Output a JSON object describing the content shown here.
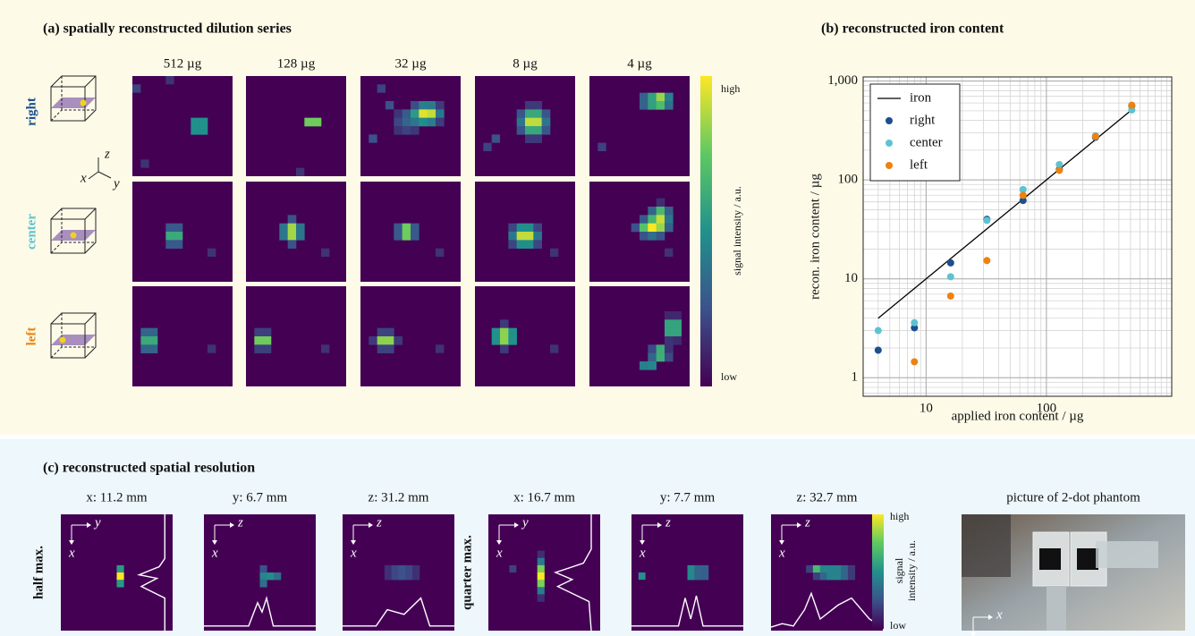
{
  "panel_a": {
    "title": "(a) spatially reconstructed dilution series",
    "columns": [
      "512 µg",
      "128 µg",
      "32 µg",
      "8 µg",
      "4 µg"
    ],
    "rows": [
      "right",
      "center",
      "left"
    ],
    "axes": {
      "x": "x",
      "y": "y",
      "z": "z"
    },
    "colorbar": {
      "high": "high",
      "low": "low",
      "label": "signal intensity / a.u."
    }
  },
  "chart_data": {
    "type": "scatter",
    "title": "(b) reconstructed iron content",
    "x_label": "applied iron content / µg",
    "y_label": "recon. iron content / µg",
    "x": [
      4,
      8,
      16,
      32,
      64,
      128,
      256,
      512
    ],
    "series": [
      {
        "name": "iron",
        "mode": "line",
        "color": "#000000",
        "values": [
          4,
          8,
          16,
          32,
          64,
          128,
          256,
          512
        ]
      },
      {
        "name": "right",
        "mode": "markers",
        "color": "#1b4f8e",
        "values": [
          1.9,
          3.2,
          14.5,
          40,
          62,
          128,
          270,
          560
        ]
      },
      {
        "name": "center",
        "mode": "markers",
        "color": "#5dc3d0",
        "values": [
          3.0,
          3.6,
          10.5,
          39,
          80,
          143,
          280,
          510
        ]
      },
      {
        "name": "left",
        "mode": "markers",
        "color": "#ec8210",
        "values": [
          null,
          1.45,
          6.7,
          15.3,
          70,
          125,
          275,
          570
        ]
      }
    ],
    "xlog": true,
    "ylog": true,
    "xlim": [
      3,
      1100
    ],
    "ylim": [
      0.65,
      1100
    ],
    "xticks": [
      10,
      100
    ],
    "yticks": [
      1,
      10,
      100,
      {
        "value": 1000,
        "label": "1,000"
      }
    ],
    "grid": true,
    "legend": "upper left"
  },
  "panel_c": {
    "title": "(c) reconstructed spatial resolution",
    "rows": [
      "half max.",
      "quarter max."
    ],
    "half_max": [
      "x: 11.2 mm",
      "y: 6.7 mm",
      "z: 31.2 mm"
    ],
    "quarter_max": [
      "x: 16.7 mm",
      "y: 7.7 mm",
      "z: 32.7 mm"
    ],
    "tile_axes": [
      {
        "h": "y",
        "v": "x"
      },
      {
        "h": "z",
        "v": "x"
      },
      {
        "h": "z",
        "v": "x"
      }
    ],
    "colorbar": {
      "high": "high",
      "low": "low",
      "label": [
        "signal",
        "intensity / a.u."
      ]
    },
    "photo_caption": "picture of 2-dot phantom",
    "photo_axes": {
      "h": "x",
      "v": "z"
    }
  }
}
